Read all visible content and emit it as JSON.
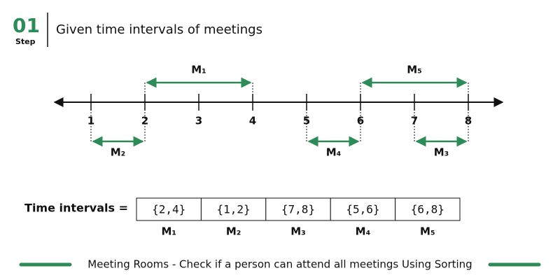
{
  "header": {
    "step_number": "01",
    "step_label": "Step",
    "title": "Given time intervals of meetings"
  },
  "number_line": {
    "ticks": [
      1,
      2,
      3,
      4,
      5,
      6,
      7,
      8
    ]
  },
  "intervals": [
    {
      "label": "M₁",
      "start": 2,
      "end": 4,
      "side": "above"
    },
    {
      "label": "M₅",
      "start": 6,
      "end": 8,
      "side": "above"
    },
    {
      "label": "M₂",
      "start": 1,
      "end": 2,
      "side": "below"
    },
    {
      "label": "M₄",
      "start": 5,
      "end": 6,
      "side": "below"
    },
    {
      "label": "M₃",
      "start": 7,
      "end": 8,
      "side": "below"
    }
  ],
  "table": {
    "label": "Time intervals =",
    "cells": [
      "{2,4}",
      "{1,2}",
      "{7,8}",
      "{5,6}",
      "{6,8}"
    ],
    "names": [
      "M₁",
      "M₂",
      "M₃",
      "M₄",
      "M₅"
    ]
  },
  "footer": {
    "caption": "Meeting Rooms - Check if a person can attend all meetings Using Sorting"
  }
}
